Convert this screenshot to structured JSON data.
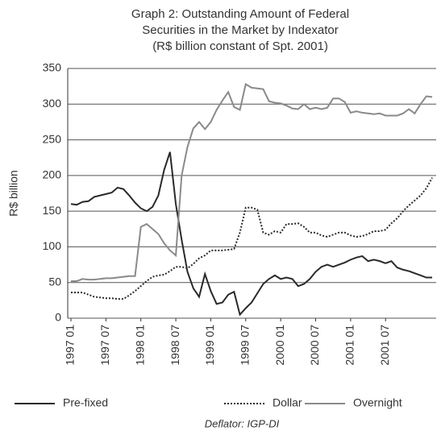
{
  "chart_data": {
    "type": "line",
    "title": [
      "Graph 2: Outstanding Amount of Federal",
      "Securities in the Market by Indexator",
      "(R$ billion constant of Spt. 2001)"
    ],
    "y_label": "R$ billion",
    "footnote": "Deflator: IGP-DI",
    "categories": [
      "1997 01",
      null,
      null,
      null,
      null,
      null,
      "1997 07",
      null,
      null,
      null,
      null,
      null,
      "1998 01",
      null,
      null,
      null,
      null,
      null,
      "1998 07",
      null,
      null,
      null,
      null,
      null,
      "1999 01",
      null,
      null,
      null,
      null,
      null,
      "1999 07",
      null,
      null,
      null,
      null,
      null,
      "2000 01",
      null,
      null,
      null,
      null,
      null,
      "2000 07",
      null,
      null,
      null,
      null,
      null,
      "2001 01",
      null,
      null,
      null,
      null,
      null,
      "2001 07",
      null,
      null,
      null,
      null,
      null,
      null,
      null,
      null
    ],
    "series": [
      {
        "name": "Pre-fixed",
        "color": "#2a2a2a",
        "line_style": "solid",
        "values": [
          160,
          159,
          163,
          164,
          170,
          172,
          174,
          176,
          183,
          181,
          172,
          162,
          154,
          150,
          156,
          172,
          208,
          233,
          160,
          110,
          65,
          42,
          30,
          62,
          38,
          20,
          22,
          33,
          37,
          5,
          14,
          22,
          35,
          48,
          55,
          60,
          55,
          57,
          55,
          45,
          48,
          55,
          65,
          72,
          75,
          72,
          75,
          78,
          82,
          85,
          87,
          80,
          82,
          80,
          77,
          80,
          71,
          68,
          66,
          63,
          60,
          57,
          57
        ]
      },
      {
        "name": "Dollar",
        "color": "#2a2a2a",
        "line_style": "dotted",
        "values": [
          36,
          36,
          36,
          33,
          30,
          29,
          28,
          28,
          27,
          27,
          32,
          38,
          45,
          52,
          58,
          60,
          61,
          66,
          72,
          72,
          70,
          76,
          84,
          88,
          95,
          95,
          95,
          96,
          97,
          120,
          155,
          155,
          152,
          120,
          117,
          122,
          120,
          132,
          132,
          133,
          128,
          120,
          120,
          116,
          114,
          117,
          120,
          120,
          116,
          114,
          115,
          118,
          122,
          122,
          124,
          133,
          140,
          150,
          158,
          165,
          172,
          182,
          197
        ]
      },
      {
        "name": "Overnight",
        "color": "#8a8a8a",
        "line_style": "solid",
        "values": [
          52,
          52,
          55,
          54,
          54,
          55,
          56,
          56,
          57,
          58,
          59,
          59,
          128,
          132,
          125,
          118,
          105,
          95,
          88,
          200,
          240,
          266,
          275,
          265,
          275,
          292,
          305,
          317,
          296,
          292,
          328,
          323,
          322,
          321,
          304,
          302,
          301,
          298,
          294,
          293,
          300,
          293,
          295,
          293,
          295,
          308,
          308,
          303,
          288,
          290,
          288,
          287,
          286,
          287,
          284,
          284,
          284,
          287,
          293,
          287,
          300,
          311,
          310
        ]
      }
    ],
    "ylim": [
      0,
      350
    ],
    "yticks": [
      0,
      50,
      100,
      150,
      200,
      250,
      300,
      350
    ],
    "grid": true,
    "legend": "bottom"
  }
}
